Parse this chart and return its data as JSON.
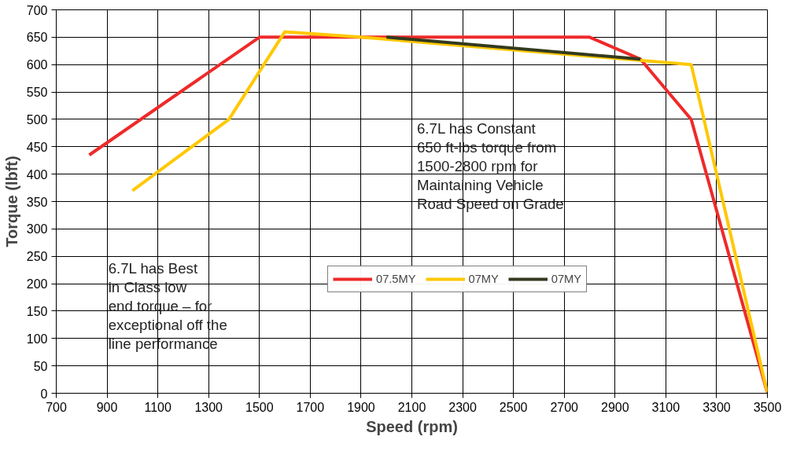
{
  "chart_data": {
    "type": "line",
    "xlabel": "Speed (rpm)",
    "ylabel": "Torque (lbft)",
    "xlim": [
      700,
      3500
    ],
    "xticks": [
      700,
      900,
      1100,
      1300,
      1500,
      1700,
      1900,
      2100,
      2300,
      2500,
      2700,
      2900,
      3100,
      3300,
      3500
    ],
    "ylim": [
      0,
      700
    ],
    "yticks": [
      0,
      50,
      100,
      150,
      200,
      250,
      300,
      350,
      400,
      450,
      500,
      550,
      600,
      650,
      700
    ],
    "grid": true,
    "legend": "right",
    "line_style": "solid",
    "marker": "none",
    "series": [
      {
        "name": "07.5MY",
        "color": "#ee2a2a",
        "x": [
          830,
          1500,
          2800,
          3000,
          3200,
          3500
        ],
        "values": [
          435,
          650,
          650,
          610,
          500,
          0
        ]
      },
      {
        "name": "07MY",
        "color": "#ffc800",
        "x": [
          1000,
          1380,
          1600,
          1900,
          3200,
          3500
        ],
        "values": [
          370,
          500,
          660,
          650,
          600,
          0
        ]
      },
      {
        "name": "07MY",
        "color": "#333a1e",
        "x": [
          2000,
          3000
        ],
        "values": [
          650,
          610
        ]
      }
    ],
    "annotations": [
      "6.7L has Constant\n650 ft-lbs torque from\n1500-2800 rpm for\nMaintaining Vehicle\nRoad Speed on Grade",
      "6.7L has Best\nin Class low\nend torque – for\nexceptional off the\nline performance"
    ]
  }
}
